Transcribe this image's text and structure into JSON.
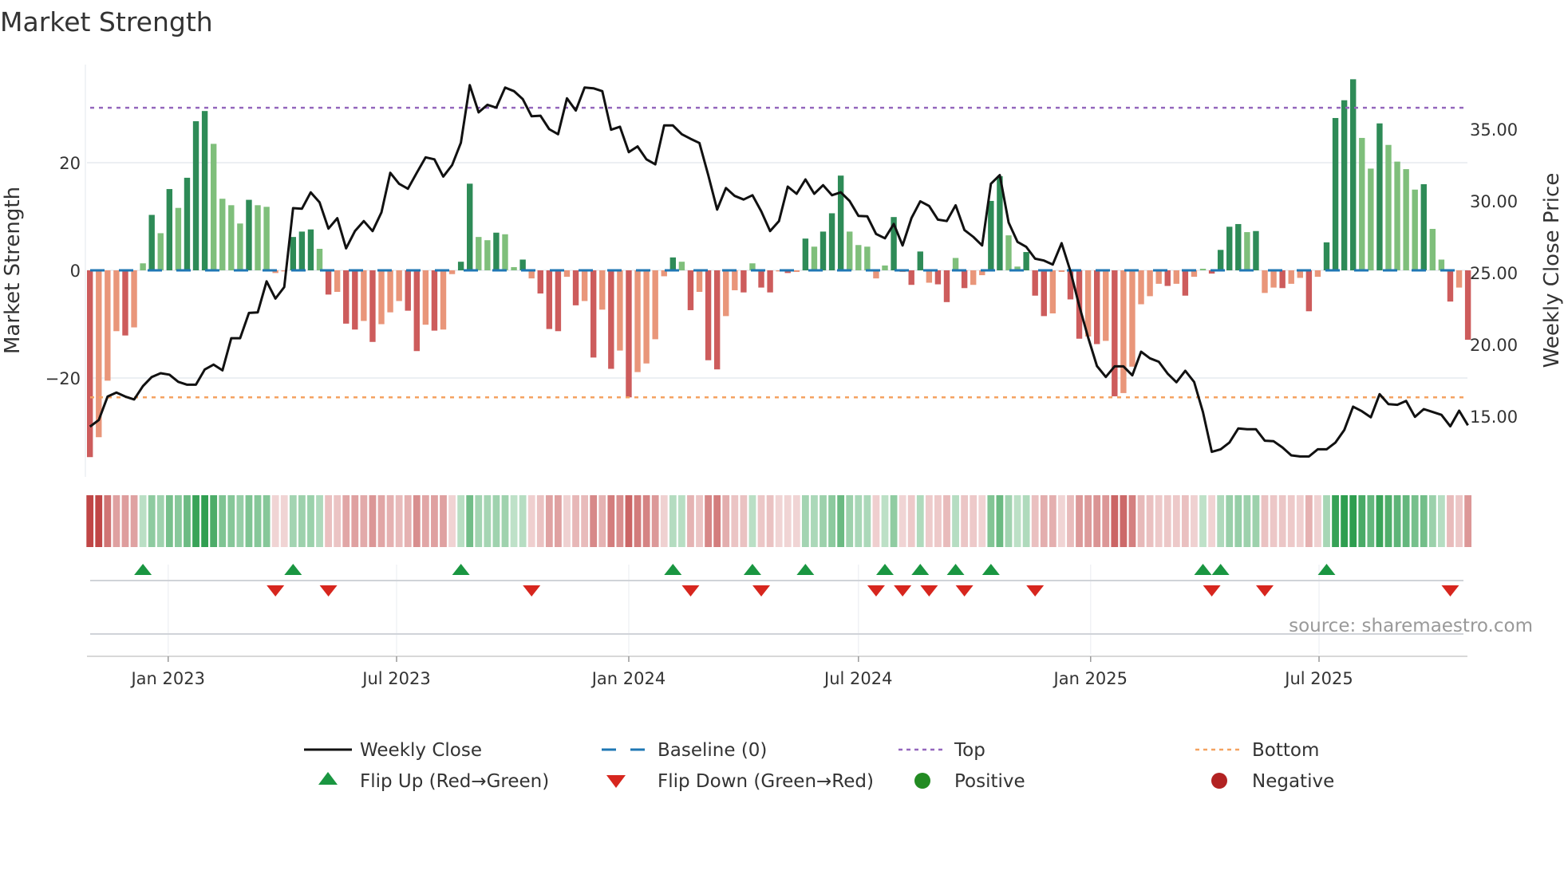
{
  "chart_data": {
    "type": "bar",
    "title": "Market Strength",
    "ylabel": "Market Strength",
    "y2label": "Weekly Close Price",
    "source": "source: sharemaestro.com",
    "start_date": "2022-10-31",
    "frequency": "weekly",
    "ylim": [
      -35,
      38
    ],
    "y2lim": [
      12,
      38.7
    ],
    "yticks": [
      {
        "value": 20,
        "label": "20"
      },
      {
        "value": 0,
        "label": "0"
      },
      {
        "value": -20,
        "label": "−20"
      }
    ],
    "y2ticks": [
      {
        "value": 35,
        "label": "35.00"
      },
      {
        "value": 30,
        "label": "30.00"
      },
      {
        "value": 25,
        "label": "25.00"
      },
      {
        "value": 20,
        "label": "20.00"
      },
      {
        "value": 15,
        "label": "15.00"
      }
    ],
    "xticks": [
      {
        "date": "2023-01-01",
        "label": "Jan 2023"
      },
      {
        "date": "2023-07-01",
        "label": "Jul 2023"
      },
      {
        "date": "2024-01-01",
        "label": "Jan 2024"
      },
      {
        "date": "2024-07-01",
        "label": "Jul 2024"
      },
      {
        "date": "2025-01-01",
        "label": "Jan 2025"
      },
      {
        "date": "2025-07-01",
        "label": "Jul 2025"
      }
    ],
    "top_level": 30.2,
    "bottom_level": -23.6,
    "baseline": 0,
    "strength": [
      -34.7,
      -31,
      -20.5,
      -11.3,
      -12.1,
      -10.6,
      1.3,
      10.3,
      6.9,
      15.1,
      11.6,
      17.2,
      27.7,
      29.6,
      23.5,
      13.3,
      12.1,
      8.7,
      13.1,
      12.1,
      11.8,
      -0.5,
      -0.2,
      6.2,
      7.2,
      7.6,
      4.0,
      -4.5,
      -4.0,
      -9.9,
      -11,
      -9.4,
      -13.3,
      -10,
      -7.8,
      -5.7,
      -7.5,
      -15,
      -10.1,
      -11.2,
      -11,
      -0.7,
      1.6,
      16.1,
      6.2,
      5.6,
      7.0,
      6.7,
      0.6,
      2.0,
      -1.5,
      -4.3,
      -10.9,
      -11.3,
      -1.2,
      -6.5,
      -5.7,
      -16.2,
      -7.3,
      -18.3,
      -14.9,
      -23.6,
      -18.9,
      -17.3,
      -12.8,
      -1.1,
      2.4,
      1.6,
      -7.4,
      -4.0,
      -16.7,
      -18.4,
      -8.5,
      -3.7,
      -4.1,
      1.3,
      -3.2,
      -4.1,
      -0.2,
      -0.5,
      -0.3,
      5.9,
      4.4,
      7.2,
      10.6,
      17.6,
      7.2,
      4.7,
      4.4,
      -1.5,
      0.9,
      9.9,
      -0.3,
      -2.7,
      3.5,
      -2.3,
      -2.6,
      -5.9,
      2.3,
      -3.3,
      -2.7,
      -0.9,
      12.9,
      17.5,
      6.5,
      0.7,
      3.4,
      -4.7,
      -8.5,
      -8.0,
      -0.3,
      -5.4,
      -12.7,
      -12.3,
      -13.7,
      -13.1,
      -23.4,
      -22.8,
      -17.9,
      -6.3,
      -4.8,
      -2.5,
      -2.9,
      -2.5,
      -4.7,
      -1.2,
      0.3,
      -0.6,
      3.8,
      8.1,
      8.6,
      7.1,
      7.3,
      -4.2,
      -3.2,
      -3.3,
      -2.5,
      -1.4,
      -7.6,
      -1.2,
      5.2,
      28.3,
      31.6,
      35.5,
      24.6,
      18.9,
      27.3,
      23.3,
      20.2,
      18.8,
      15.0,
      16.0,
      7.7,
      2.0,
      -5.8,
      -3.2,
      -12.9
    ],
    "weekly_close": [
      14.28,
      14.74,
      16.37,
      16.65,
      16.37,
      16.17,
      17.1,
      17.74,
      18.0,
      17.9,
      17.4,
      17.2,
      17.2,
      18.26,
      18.6,
      18.2,
      20.44,
      20.44,
      22.2,
      22.24,
      24.4,
      23.2,
      24.0,
      29.5,
      29.46,
      30.6,
      29.9,
      28.07,
      28.8,
      26.7,
      27.9,
      28.6,
      27.9,
      29.2,
      31.96,
      31.2,
      30.85,
      31.96,
      33.04,
      32.9,
      31.7,
      32.5,
      34.06,
      38.07,
      36.17,
      36.7,
      36.5,
      37.9,
      37.65,
      37.1,
      35.9,
      35.94,
      35.0,
      34.65,
      37.15,
      36.3,
      37.9,
      37.85,
      37.65,
      34.96,
      35.17,
      33.4,
      33.8,
      32.9,
      32.55,
      35.26,
      35.26,
      34.65,
      34.33,
      34.04,
      31.8,
      29.4,
      30.9,
      30.35,
      30.1,
      30.4,
      29.28,
      27.9,
      28.6,
      31.0,
      30.5,
      31.5,
      30.5,
      31.1,
      30.4,
      30.6,
      30.0,
      28.96,
      28.93,
      27.7,
      27.4,
      28.4,
      26.9,
      28.8,
      29.98,
      29.65,
      28.7,
      28.6,
      29.7,
      27.98,
      27.5,
      26.9,
      31.2,
      31.8,
      28.5,
      27.15,
      26.8,
      25.98,
      25.85,
      25.57,
      27.06,
      25.1,
      22.7,
      20.5,
      18.5,
      17.74,
      18.48,
      18.48,
      17.85,
      19.5,
      19.04,
      18.8,
      17.98,
      17.37,
      18.17,
      17.39,
      15.3,
      12.52,
      12.7,
      13.17,
      14.15,
      14.1,
      14.1,
      13.3,
      13.26,
      12.83,
      12.28,
      12.2,
      12.2,
      12.7,
      12.7,
      13.17,
      14.04,
      15.67,
      15.35,
      14.93,
      16.54,
      15.85,
      15.8,
      16.07,
      14.96,
      15.5,
      15.3,
      15.1,
      14.3,
      15.39,
      14.37
    ],
    "colors": {
      "pos_strong": "#2e8b57",
      "pos_weak": "#7fbf7b",
      "neg_strong": "#cd5c5c",
      "neg_weak": "#e9967a",
      "price": "#111111",
      "baseline": "#1f77b4",
      "top": "#9467bd",
      "bottom": "#f4a261",
      "flip_up": "#1a9641",
      "flip_down": "#d7261e",
      "positive": "#228b22",
      "negative": "#b22222"
    },
    "legend": {
      "placement": "bottom",
      "items": [
        {
          "key": "weekly_close",
          "label": "Weekly Close"
        },
        {
          "key": "baseline",
          "label": "Baseline (0)"
        },
        {
          "key": "top",
          "label": "Top"
        },
        {
          "key": "bottom",
          "label": "Bottom"
        },
        {
          "key": "flip_up",
          "label": "Flip Up (Red→Green)"
        },
        {
          "key": "flip_down",
          "label": "Flip Down (Green→Red)"
        },
        {
          "key": "positive",
          "label": "Positive"
        },
        {
          "key": "negative",
          "label": "Negative"
        }
      ]
    }
  }
}
